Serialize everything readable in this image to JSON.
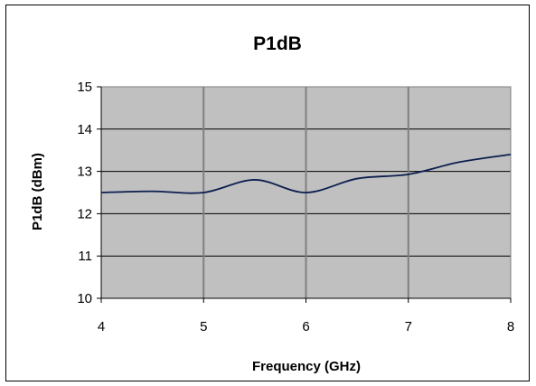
{
  "chart_data": {
    "type": "line",
    "title": "P1dB",
    "xlabel": "Frequency (GHz)",
    "ylabel": "P1dB (dBm)",
    "xlim": [
      4,
      8
    ],
    "ylim": [
      10,
      15
    ],
    "x_ticks": [
      "4",
      "5",
      "6",
      "7",
      "8"
    ],
    "y_ticks": [
      "10",
      "11",
      "12",
      "13",
      "14",
      "15"
    ],
    "grid": true,
    "legend": "none",
    "colors": {
      "plot_background": "#c0c0c0",
      "gridline": "#7f7f7f",
      "line": "#0d1f4f",
      "frame": "#000000"
    },
    "series": [
      {
        "x": [
          4,
          4.5,
          5,
          5.5,
          6,
          6.5,
          7,
          7.5,
          8
        ],
        "values": [
          12.5,
          12.53,
          12.5,
          12.8,
          12.5,
          12.83,
          12.93,
          13.22,
          13.4
        ]
      }
    ]
  }
}
